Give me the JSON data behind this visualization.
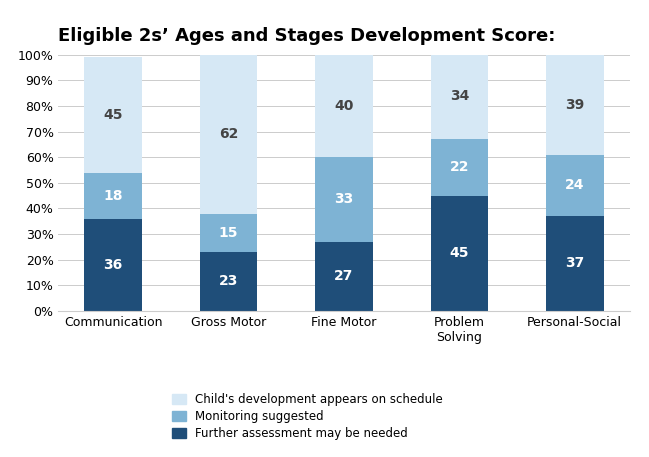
{
  "title": "Eligible 2s’ Ages and Stages Development Score:",
  "categories": [
    "Communication",
    "Gross Motor",
    "Fine Motor",
    "Problem\nSolving",
    "Personal-Social"
  ],
  "series": {
    "further": [
      36,
      23,
      27,
      45,
      37
    ],
    "monitoring": [
      18,
      15,
      33,
      22,
      24
    ],
    "on_schedule": [
      45,
      62,
      40,
      34,
      39
    ]
  },
  "colors": {
    "further": "#1F4E79",
    "monitoring": "#7EB3D4",
    "on_schedule": "#D6E8F5"
  },
  "legend_labels": [
    "Child's development appears on schedule",
    "Monitoring suggested",
    "Further assessment may be needed"
  ],
  "legend_colors": [
    "#D6E8F5",
    "#7EB3D4",
    "#1F4E79"
  ],
  "ylabel_ticks": [
    "0%",
    "10%",
    "20%",
    "30%",
    "40%",
    "50%",
    "60%",
    "70%",
    "80%",
    "90%",
    "100%"
  ],
  "ylim": [
    0,
    100
  ],
  "title_fontsize": 13,
  "label_fontsize": 10,
  "tick_fontsize": 9,
  "bar_width": 0.5
}
